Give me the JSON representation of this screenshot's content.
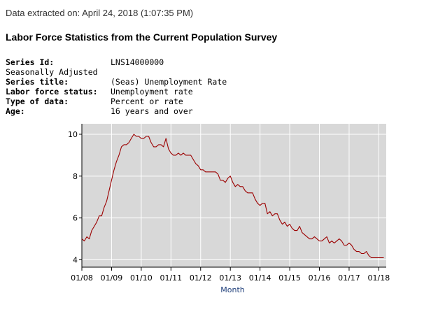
{
  "header": {
    "extracted": "Data extracted on: April 24, 2018 (1:07:35 PM)",
    "title": "Labor Force Statistics from the Current Population Survey"
  },
  "series_info": {
    "series_id_label": "Series Id:",
    "series_id": "LNS14000000",
    "adjustment": "Seasonally Adjusted",
    "series_title_label": "Series title:",
    "series_title": "(Seas) Unemployment Rate",
    "status_label": "Labor force status:",
    "status": "Unemployment rate",
    "type_label": "Type of data:",
    "type": "Percent or rate",
    "age_label": "Age:",
    "age": "16 years and over"
  },
  "colors": {
    "plot_bg": "#d8d8d8",
    "grid": "#ffffff",
    "line": "#9c0000",
    "axis_title": "#1f3f7a"
  },
  "chart_data": {
    "type": "line",
    "title": "",
    "xlabel": "Month",
    "ylabel": "",
    "ylim": [
      3.65,
      10.5
    ],
    "xlim": [
      0,
      123
    ],
    "grid": true,
    "yticks": [
      4,
      6,
      8,
      10
    ],
    "xtick_labels": [
      "01/08",
      "01/09",
      "01/10",
      "01/11",
      "01/12",
      "01/13",
      "01/14",
      "01/15",
      "01/16",
      "01/17",
      "01/18"
    ],
    "x_start": "2008-01",
    "series": [
      {
        "name": "Unemployment Rate",
        "values": [
          5.0,
          4.9,
          5.1,
          5.0,
          5.4,
          5.6,
          5.8,
          6.1,
          6.1,
          6.5,
          6.8,
          7.3,
          7.8,
          8.3,
          8.7,
          9.0,
          9.4,
          9.5,
          9.5,
          9.6,
          9.8,
          10.0,
          9.9,
          9.9,
          9.8,
          9.8,
          9.9,
          9.9,
          9.6,
          9.4,
          9.4,
          9.5,
          9.5,
          9.4,
          9.8,
          9.3,
          9.1,
          9.0,
          9.0,
          9.1,
          9.0,
          9.1,
          9.0,
          9.0,
          9.0,
          8.8,
          8.6,
          8.5,
          8.3,
          8.3,
          8.2,
          8.2,
          8.2,
          8.2,
          8.2,
          8.1,
          7.8,
          7.8,
          7.7,
          7.9,
          8.0,
          7.7,
          7.5,
          7.6,
          7.5,
          7.5,
          7.3,
          7.2,
          7.2,
          7.2,
          6.9,
          6.7,
          6.6,
          6.7,
          6.7,
          6.2,
          6.3,
          6.1,
          6.2,
          6.2,
          5.9,
          5.7,
          5.8,
          5.6,
          5.7,
          5.5,
          5.4,
          5.4,
          5.6,
          5.3,
          5.2,
          5.1,
          5.0,
          5.0,
          5.1,
          5.0,
          4.9,
          4.9,
          5.0,
          5.1,
          4.8,
          4.9,
          4.8,
          4.9,
          5.0,
          4.9,
          4.7,
          4.7,
          4.8,
          4.7,
          4.5,
          4.4,
          4.4,
          4.3,
          4.3,
          4.4,
          4.2,
          4.1,
          4.1,
          4.1,
          4.1,
          4.1,
          4.1
        ]
      }
    ]
  }
}
